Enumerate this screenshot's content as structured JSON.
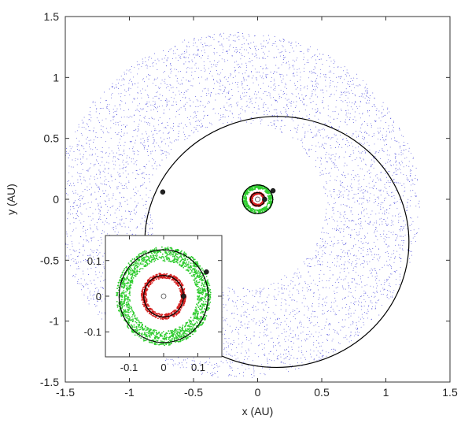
{
  "chart_data": [
    {
      "type": "scatter",
      "title": "",
      "xlabel": "x (AU)",
      "ylabel": "y (AU)",
      "xlim": [
        -1.5,
        1.5
      ],
      "ylim": [
        -1.5,
        1.5
      ],
      "xticks": [
        "-1.5",
        "-1",
        "-0.5",
        "0",
        "0.5",
        "1",
        "1.5"
      ],
      "yticks": [
        "-1.5",
        "-1",
        "-0.5",
        "0",
        "0.5",
        "1",
        "1.5"
      ],
      "grid": false,
      "star": {
        "x": 0,
        "y": 0
      },
      "outer_disk_annulus": {
        "center_x": -0.15,
        "center_y": -0.05,
        "inner_radius": 0.68,
        "outer_radius": 1.42,
        "color": "#3b3bd8"
      },
      "green_ring": {
        "center_x": 0,
        "center_y": 0,
        "inner_radius": 0.085,
        "outer_radius": 0.12,
        "color": "#2ecc2e"
      },
      "red_ring": {
        "center_x": 0,
        "center_y": 0,
        "inner_radius": 0.04,
        "outer_radius": 0.06,
        "color": "#d42020"
      },
      "outer_orbit": {
        "center_x": 0.15,
        "center_y": -0.35,
        "radius": 1.03,
        "color": "#000000"
      },
      "inner_orbit_a": {
        "center_x": 0,
        "center_y": 0,
        "radius": 0.055,
        "color": "#000000"
      },
      "inner_orbit_b": {
        "center_x": 0,
        "center_y": 0,
        "radius": 0.118,
        "color": "#000000"
      },
      "planets": [
        {
          "x": -0.74,
          "y": 0.06
        },
        {
          "x": 0.12,
          "y": 0.07
        },
        {
          "x": 0.055,
          "y": 0.0
        }
      ]
    },
    {
      "type": "scatter",
      "title": "",
      "role": "inset",
      "xlabel": "",
      "ylabel": "",
      "xlim": [
        -0.17,
        0.17
      ],
      "ylim": [
        -0.17,
        0.17
      ],
      "xticks": [
        "-0.1",
        "0",
        "0.1"
      ],
      "yticks": [
        "-0.1",
        "0",
        "0.1"
      ],
      "grid": false,
      "star": {
        "x": 0,
        "y": 0
      },
      "green_ring": {
        "center_x": 0,
        "center_y": 0,
        "inner_radius": 0.098,
        "outer_radius": 0.138,
        "color": "#2ecc2e"
      },
      "red_ring": {
        "center_x": 0,
        "center_y": 0,
        "inner_radius": 0.05,
        "outer_radius": 0.065,
        "color": "#d42020"
      },
      "inner_orbit_a": {
        "center_x": 0,
        "center_y": 0,
        "radius": 0.058,
        "color": "#000000"
      },
      "inner_orbit_b": {
        "center_x": 0,
        "center_y": 0,
        "radius": 0.13,
        "color": "#000000"
      },
      "planets": [
        {
          "x": 0.125,
          "y": 0.068
        },
        {
          "x": 0.058,
          "y": 0.0
        }
      ]
    }
  ]
}
